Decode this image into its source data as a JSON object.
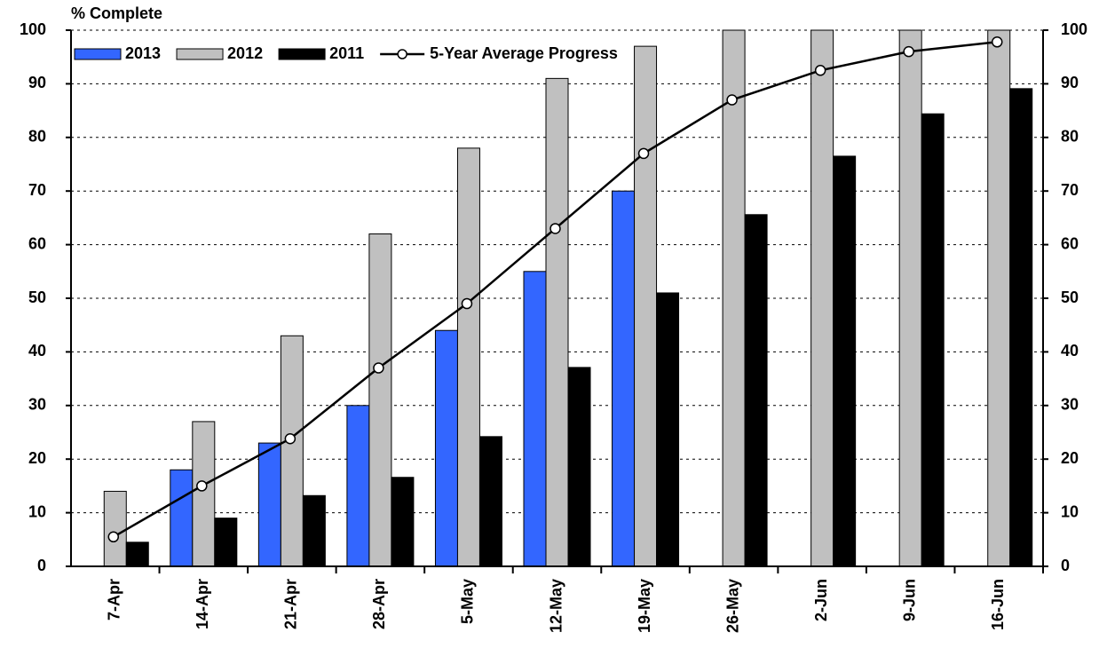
{
  "chart_data": {
    "type": "bar",
    "y_label": "% Complete",
    "categories": [
      "7-Apr",
      "14-Apr",
      "21-Apr",
      "28-Apr",
      "5-May",
      "12-May",
      "19-May",
      "26-May",
      "2-Jun",
      "9-Jun",
      "16-Jun"
    ],
    "series": [
      {
        "name": "2013",
        "color": "#3366ff",
        "values": [
          null,
          18,
          23,
          30,
          44,
          55,
          70,
          null,
          null,
          null,
          null
        ]
      },
      {
        "name": "2012",
        "color": "#c0c0c0",
        "values": [
          14,
          27,
          43,
          62,
          78,
          91,
          97,
          100,
          100,
          100,
          100
        ]
      },
      {
        "name": "2011",
        "color": "#000000",
        "values": [
          4.5,
          9,
          13.2,
          16.6,
          24.2,
          37.1,
          51,
          65.6,
          76.5,
          84.4,
          89.1
        ]
      },
      {
        "name": "5-Year Average Progress",
        "type": "line",
        "color": "#000000",
        "values": [
          5.5,
          15,
          23.8,
          37,
          49,
          63,
          77,
          87,
          92.5,
          96,
          97.8
        ]
      }
    ],
    "ylim": [
      0,
      100
    ],
    "yticks": [
      0,
      10,
      20,
      30,
      40,
      50,
      60,
      70,
      80,
      90,
      100
    ],
    "y2lim": [
      0,
      100
    ],
    "y2ticks": [
      0,
      10,
      20,
      30,
      40,
      50,
      60,
      70,
      80,
      90,
      100
    ],
    "grid": true,
    "legend": "top-left"
  }
}
